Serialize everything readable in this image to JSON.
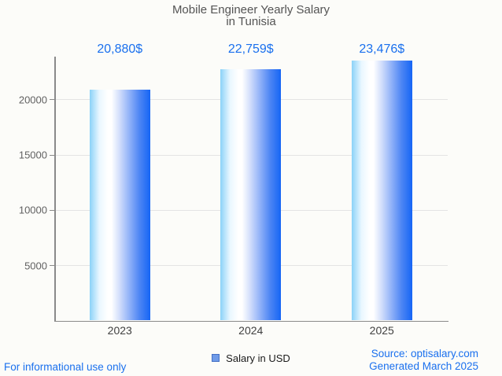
{
  "title": {
    "line1": "Mobile Engineer Yearly Salary",
    "line2": "in Tunisia"
  },
  "chart_data": {
    "type": "bar",
    "title": "Mobile Engineer Yearly Salary in Tunisia",
    "categories": [
      "2023",
      "2024",
      "2025"
    ],
    "series": [
      {
        "name": "Salary in USD",
        "values": [
          20880,
          22759,
          23476
        ],
        "value_labels": [
          "20,880$",
          "22,759$",
          "23,476$"
        ]
      }
    ],
    "xlabel": "",
    "ylabel": "",
    "ylim": [
      0,
      25000
    ],
    "yticks": [
      5000,
      10000,
      15000,
      20000
    ],
    "grid": true,
    "legend_position": "bottom"
  },
  "legend": {
    "label": "Salary in USD",
    "marker_color": "#6f9be8",
    "marker_border": "#4470c4"
  },
  "footer": {
    "left": "For informational use only",
    "source_line": "Source: optisalary.com",
    "generated_line": "Generated March 2025"
  },
  "colors": {
    "accent_blue": "#1a70ee",
    "title_text": "#545454",
    "axis": "#8a8a8a",
    "grid": "#e4e4e4",
    "y_tick_label": "#616161",
    "x_tick_label": "#404040",
    "background": "#fcfcf9",
    "bar_gradient_left": "#8bd2f8",
    "bar_gradient_mid": "#ffffff",
    "bar_gradient_right": "#1565f5"
  }
}
